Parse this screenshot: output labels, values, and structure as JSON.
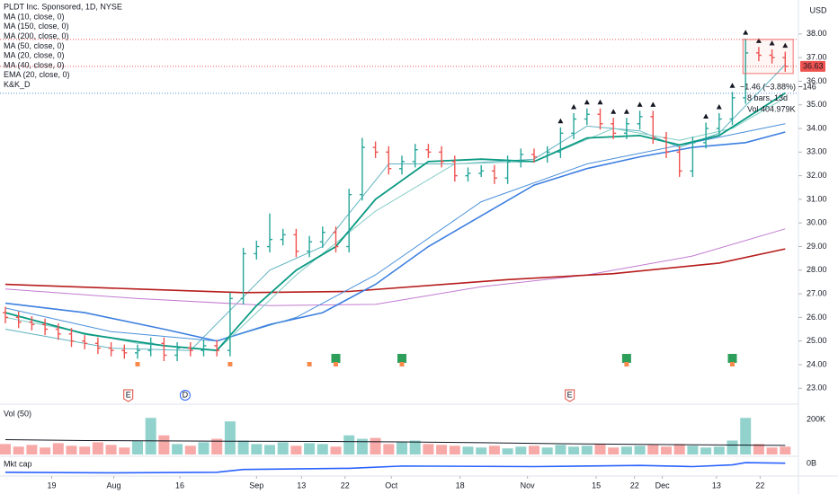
{
  "chart_data": {
    "type": "ohlc",
    "title": "PLDT Inc. Sponsored, 1D, NYSE",
    "indicators": [
      "MA (10, close, 0)",
      "MA (150, close, 0)",
      "MA (200, close, 0)",
      "MA (50, close, 0)",
      "MA (20, close, 0)",
      "MA (40, close, 0)",
      "EMA (20, close, 0)",
      "K&K_D"
    ],
    "axis_unit": "USD",
    "ylim": [
      22.44,
      39.44
    ],
    "yticks": [
      {
        "value": 38,
        "label": "38.00"
      },
      {
        "value": 37,
        "label": "37.00"
      },
      {
        "value": 36,
        "label": "36.00"
      },
      {
        "value": 35,
        "label": "35.00"
      },
      {
        "value": 34,
        "label": "34.00"
      },
      {
        "value": 33,
        "label": "33.00"
      },
      {
        "value": 32,
        "label": "32.00"
      },
      {
        "value": 31,
        "label": "31.00"
      },
      {
        "value": 30,
        "label": "30.00"
      },
      {
        "value": 29,
        "label": "29.00"
      },
      {
        "value": 28,
        "label": "28.00"
      },
      {
        "value": 27,
        "label": "27.00"
      },
      {
        "value": 26,
        "label": "26.00"
      },
      {
        "value": 25,
        "label": "25.00"
      },
      {
        "value": 24,
        "label": "24.00"
      },
      {
        "value": 23,
        "label": "23.00"
      }
    ],
    "xticks": [
      {
        "value": 3.5,
        "label": "19"
      },
      {
        "value": 8.2,
        "label": "Aug"
      },
      {
        "value": 13.2,
        "label": "16"
      },
      {
        "value": 19,
        "label": "Sep"
      },
      {
        "value": 22.4,
        "label": "13"
      },
      {
        "value": 25.7,
        "label": "22"
      },
      {
        "value": 29.2,
        "label": "Oct"
      },
      {
        "value": 34.4,
        "label": "18"
      },
      {
        "value": 39.5,
        "label": "Nov"
      },
      {
        "value": 44.7,
        "label": "15"
      },
      {
        "value": 47.6,
        "label": "22"
      },
      {
        "value": 49.7,
        "label": "Dec"
      },
      {
        "value": 53.8,
        "label": "13"
      },
      {
        "value": 57.1,
        "label": "22"
      }
    ],
    "up_color": "#26a69a",
    "down_color": "#ef5350",
    "open": [
      26.2,
      26.0,
      25.8,
      25.7,
      25.5,
      25.3,
      25.0,
      24.9,
      24.7,
      24.6,
      24.5,
      24.6,
      24.9,
      24.4,
      24.7,
      24.6,
      24.8,
      24.6,
      26.8,
      28.7,
      29.0,
      29.3,
      29.5,
      28.8,
      29.2,
      29.6,
      29.0,
      31.2,
      33.2,
      33.0,
      32.3,
      32.6,
      33.1,
      33.0,
      32.6,
      32.0,
      32.1,
      32.2,
      31.9,
      32.6,
      32.9,
      32.8,
      33.0,
      33.8,
      34.4,
      34.6,
      34.2,
      33.8,
      34.2,
      34.5,
      33.6,
      33.0,
      32.2,
      33.4,
      34.0,
      34.4,
      35.3,
      37.2,
      37.1,
      37.0
    ],
    "high": [
      26.45,
      26.25,
      26.05,
      25.95,
      25.75,
      25.55,
      25.25,
      25.15,
      24.95,
      24.85,
      24.85,
      25.15,
      25.15,
      24.95,
      24.95,
      25.05,
      25.05,
      27.05,
      28.95,
      29.25,
      30.4,
      29.75,
      29.75,
      29.45,
      29.85,
      29.85,
      31.45,
      33.6,
      33.45,
      33.25,
      32.85,
      33.35,
      33.35,
      33.25,
      32.85,
      32.35,
      32.45,
      32.45,
      32.85,
      33.15,
      33.15,
      33.25,
      34.05,
      34.65,
      34.85,
      34.85,
      34.45,
      34.45,
      34.75,
      34.75,
      33.85,
      33.25,
      33.65,
      34.25,
      34.65,
      35.55,
      37.8,
      37.45,
      37.35,
      37.25
    ],
    "low": [
      25.75,
      25.55,
      25.45,
      25.25,
      25.05,
      24.75,
      24.65,
      24.45,
      24.35,
      24.25,
      24.25,
      24.35,
      24.15,
      24.15,
      24.35,
      24.35,
      24.35,
      24.35,
      26.55,
      28.45,
      28.75,
      29.05,
      28.55,
      28.55,
      28.95,
      28.75,
      28.75,
      30.95,
      32.75,
      32.05,
      32.05,
      32.35,
      32.75,
      32.35,
      31.75,
      31.75,
      31.95,
      31.65,
      31.65,
      32.35,
      32.55,
      32.55,
      32.75,
      33.55,
      34.15,
      33.95,
      33.55,
      33.55,
      33.95,
      33.35,
      32.75,
      31.95,
      31.95,
      33.15,
      33.75,
      34.15,
      35.05,
      36.85,
      36.75,
      36.4
    ],
    "close": [
      26.0,
      25.8,
      25.7,
      25.5,
      25.3,
      25.0,
      24.9,
      24.7,
      24.6,
      24.5,
      24.6,
      24.9,
      24.4,
      24.7,
      24.6,
      24.8,
      24.6,
      26.8,
      28.7,
      29.0,
      29.3,
      29.5,
      28.8,
      29.2,
      29.6,
      29.0,
      31.2,
      33.2,
      33.0,
      32.3,
      32.6,
      33.1,
      33.0,
      32.6,
      32.0,
      32.1,
      32.2,
      31.9,
      32.6,
      32.9,
      32.8,
      33.0,
      33.8,
      34.4,
      34.6,
      34.2,
      33.8,
      34.2,
      34.5,
      33.6,
      33.0,
      32.2,
      33.4,
      34.0,
      34.4,
      35.3,
      37.2,
      37.1,
      37.0,
      36.63
    ],
    "lines": [
      {
        "name": "MA (10, close, 0)",
        "color": "#5fb3c0",
        "width": 1,
        "x": [
          0,
          8,
          14,
          20,
          24,
          29,
          34,
          40,
          44,
          48,
          51,
          54,
          59
        ],
        "values": [
          25.5,
          24.7,
          24.6,
          28.0,
          29.0,
          32.5,
          32.5,
          32.7,
          34.1,
          33.9,
          33.2,
          33.8,
          36.7
        ]
      },
      {
        "name": "MA (150, close, 0)",
        "color": "#c27bd0",
        "width": 1,
        "x": [
          0,
          10,
          20,
          28,
          36,
          44,
          52,
          59
        ],
        "values": [
          27.2,
          26.8,
          26.5,
          26.55,
          27.3,
          27.8,
          28.6,
          29.75
        ]
      },
      {
        "name": "MA (200, close, 0)",
        "color": "#b71c1c",
        "width": 1.6,
        "x": [
          0,
          10,
          18,
          26,
          38,
          46,
          54,
          59
        ],
        "values": [
          27.4,
          27.2,
          27.05,
          27.1,
          27.6,
          27.85,
          28.3,
          28.9
        ]
      },
      {
        "name": "MA (50, close, 0)",
        "color": "#3d7fe0",
        "width": 1.6,
        "x": [
          0,
          6,
          12,
          16,
          20,
          24,
          28,
          32,
          36,
          40,
          44,
          48,
          52,
          56,
          59
        ],
        "values": [
          26.6,
          26.2,
          25.5,
          25.0,
          25.7,
          26.2,
          27.4,
          29.0,
          30.3,
          31.6,
          32.3,
          32.8,
          33.2,
          33.4,
          33.85
        ]
      },
      {
        "name": "MA (20, close, 0)",
        "color": "#80cbc4",
        "width": 1,
        "x": [
          0,
          10,
          16,
          22,
          28,
          34,
          40,
          46,
          51,
          55,
          59
        ],
        "values": [
          26.0,
          24.9,
          24.6,
          27.8,
          30.5,
          32.5,
          32.6,
          34.0,
          33.5,
          34.0,
          35.3
        ]
      },
      {
        "name": "MA (40, close, 0)",
        "color": "#4a90d9",
        "width": 1,
        "x": [
          0,
          8,
          16,
          22,
          28,
          36,
          44,
          52,
          59
        ],
        "values": [
          26.4,
          25.4,
          25.0,
          26.0,
          27.8,
          30.9,
          32.5,
          33.4,
          34.2
        ]
      },
      {
        "name": "EMA (20, close, 0)",
        "color": "#089981",
        "width": 1.8,
        "x": [
          0,
          6,
          12,
          16,
          19,
          22,
          25,
          28,
          32,
          36,
          40,
          44,
          48,
          51,
          54,
          59
        ],
        "values": [
          26.2,
          25.3,
          24.8,
          24.6,
          26.5,
          28.0,
          29.0,
          31.0,
          32.6,
          32.7,
          32.6,
          33.6,
          33.7,
          33.3,
          33.7,
          35.5
        ]
      }
    ],
    "levels": [
      {
        "value": 37.77,
        "color": "#ef5350"
      },
      {
        "value": 36.63,
        "color": "#ef5350"
      },
      {
        "value": 35.49,
        "color": "#5b8fd6"
      }
    ],
    "last_price": 36.63,
    "signal_bars": [
      42,
      43,
      44,
      45,
      46,
      47,
      48,
      49,
      53,
      54,
      55,
      56,
      57,
      58,
      59
    ],
    "green_signals": [
      25,
      30,
      47,
      55
    ],
    "orange_signals": [
      10,
      17,
      23,
      25,
      30,
      47,
      55
    ],
    "events": [
      {
        "label": "E",
        "x": 9.3,
        "color": "#e0473a"
      },
      {
        "label": "D",
        "x": 13.6,
        "color": "#2962ff"
      },
      {
        "label": "E",
        "x": 42.7,
        "color": "#e0473a"
      }
    ],
    "measure": {
      "x": [
        55.8,
        59.6
      ],
      "lines": [
        "−1.46 (−3.88%) −146",
        "8 bars, 13d",
        "Vol 404.979K"
      ]
    },
    "volume": {
      "name": "Vol (50)",
      "ylim": [
        0,
        263000
      ],
      "yticks": [
        {
          "value": 200000,
          "label": "200K"
        }
      ],
      "values": [
        60000,
        45000,
        55000,
        40000,
        65000,
        50000,
        45000,
        70000,
        55000,
        40000,
        80000,
        210000,
        110000,
        60000,
        50000,
        70000,
        90000,
        190000,
        80000,
        60000,
        55000,
        70000,
        50000,
        65000,
        60000,
        45000,
        110000,
        90000,
        95000,
        60000,
        70000,
        80000,
        60000,
        55000,
        50000,
        45000,
        40000,
        50000,
        35000,
        45000,
        50000,
        40000,
        55000,
        45000,
        50000,
        60000,
        40000,
        45000,
        50000,
        55000,
        45000,
        60000,
        50000,
        40000,
        45000,
        80000,
        210000,
        60000,
        40000,
        45000
      ],
      "ma_x": [
        0,
        6,
        12,
        18,
        24,
        30,
        36,
        42,
        48,
        54,
        59
      ],
      "ma_values": [
        85000,
        80000,
        78000,
        76000,
        75000,
        72000,
        68000,
        62000,
        58000,
        55000,
        52000
      ]
    },
    "mktcap": {
      "name": "Mkt cap",
      "color": "#2962ff",
      "ylim": [
        -2,
        1
      ],
      "yticks": [
        {
          "value": 0,
          "label": "0B"
        }
      ],
      "x": [
        0,
        8,
        16,
        18,
        26,
        30,
        40,
        48,
        52,
        55,
        56,
        59
      ],
      "values": [
        -1.5,
        -1.6,
        -1.5,
        -1.0,
        -0.8,
        -0.4,
        -0.5,
        -0.3,
        -0.5,
        -0.2,
        0.2,
        0.1
      ]
    }
  }
}
